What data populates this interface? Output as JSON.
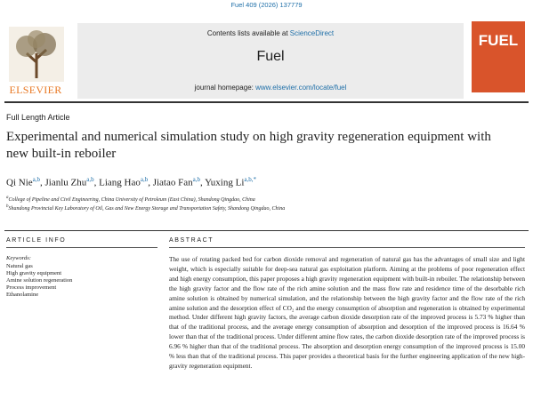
{
  "journal_ref": "Fuel 409 (2026) 137779",
  "header": {
    "contents_text": "Contents lists available at ",
    "contents_link": "ScienceDirect",
    "journal": "Fuel",
    "homepage_text": "journal homepage: ",
    "homepage_url": "www.elsevier.com/locate/fuel",
    "publisher": "ELSEVIER",
    "cover_title": "FUEL"
  },
  "article_type": "Full Length Article",
  "title": "Experimental and numerical simulation study on high gravity regeneration equipment with new built-in reboiler",
  "authors": [
    {
      "name": "Qi Nie",
      "sup": "a,b",
      "sep": ","
    },
    {
      "name": "Jianlu Zhu",
      "sup": "a,b",
      "sep": ","
    },
    {
      "name": "Liang Hao",
      "sup": "a,b",
      "sep": ","
    },
    {
      "name": "Jiatao Fan",
      "sup": "a,b",
      "sep": ","
    },
    {
      "name": "Yuxing Li",
      "sup": "a,b,*"
    }
  ],
  "affiliations": [
    {
      "label": "a",
      "text": "College of Pipeline and Civil Engineering, China University of Petroleum (East China), Shandong Qingdao, China"
    },
    {
      "label": "b",
      "text": "Shandong Provincial Key Laboratory of Oil, Gas and New Energy Storage and Transportation Safety, Shandong Qingdao, China"
    }
  ],
  "article_info": {
    "heading": "ARTICLE INFO",
    "keywords_label": "Keywords:",
    "keywords": [
      "Natural gas",
      "High gravity equipment",
      "Amine solution regeneration",
      "Process improvement",
      "Ethanolamine"
    ]
  },
  "abstract": {
    "heading": "ABSTRACT",
    "text": "The use of rotating packed bed for carbon dioxide removal and regeneration of natural gas has the advantages of small size and light weight, which is especially suitable for deep-sea natural gas exploitation platform. Aiming at the problems of poor regeneration effect and high energy consumption, this paper proposes a high gravity regeneration equipment with built-in reboiler. The relationship between the high gravity factor and the flow rate of the rich amine solution and the mass flow rate and residence time of the desorbable rich amine solution is obtained by numerical simulation, and the relationship between the high gravity factor and the flow rate of the rich amine solution and the desorption effect of CO₂ and the energy consumption of absorption and regeneration is obtained by experimental method. Under different high gravity factors, the average carbon dioxide desorption rate of the improved process is 5.73 % higher than that of the traditional process, and the average energy consumption of absorption and desorption of the improved process is 16.64 % lower than that of the traditional process. Under different amine flow rates, the carbon dioxide desorption rate of the improved process is 6.96 % higher than that of the traditional process. The absorption and desorption energy consumption of the improved process is 15.00 % less than that of the traditional process. This paper provides a theoretical basis for the further engineering application of the new high-gravity regeneration equipment."
  }
}
